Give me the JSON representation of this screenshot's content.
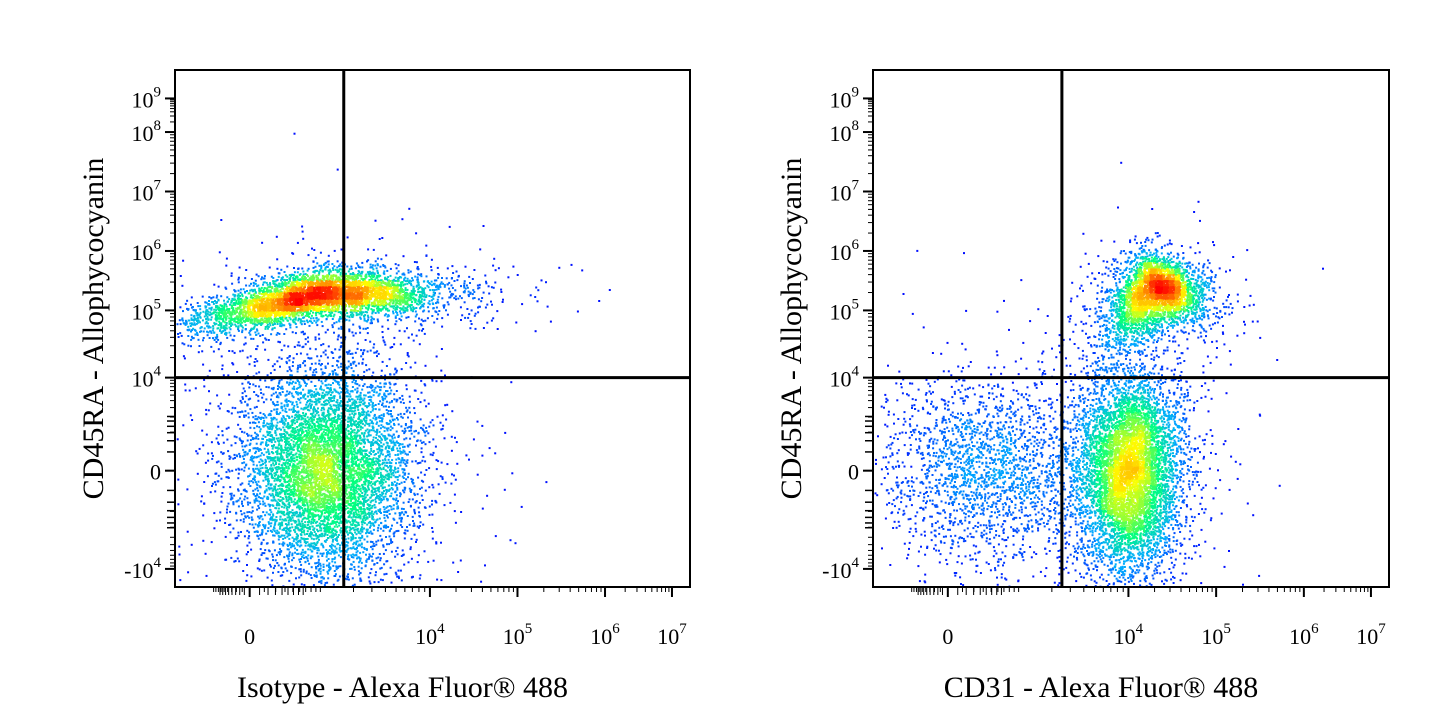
{
  "chart_data": [
    {
      "type": "scatter",
      "style": "density-dot-plot",
      "title": "",
      "xlabel": "Isotype - Alexa Fluor® 488",
      "ylabel": "CD45RA - Allophycocyanin",
      "x_scale": "biexponential",
      "y_scale": "biexponential",
      "x_ticks": [
        {
          "value": 0,
          "base": "0",
          "exp": ""
        },
        {
          "value": 10000,
          "base": "10",
          "exp": "4"
        },
        {
          "value": 100000,
          "base": "10",
          "exp": "5"
        },
        {
          "value": 1000000,
          "base": "10",
          "exp": "6"
        },
        {
          "value": 10000000,
          "base": "10",
          "exp": "7"
        }
      ],
      "y_ticks": [
        {
          "value": -10000,
          "base": "-10",
          "exp": "4"
        },
        {
          "value": 0,
          "base": "0",
          "exp": ""
        },
        {
          "value": 10000,
          "base": "10",
          "exp": "4"
        },
        {
          "value": 100000,
          "base": "10",
          "exp": "5"
        },
        {
          "value": 1000000,
          "base": "10",
          "exp": "6"
        },
        {
          "value": 10000000,
          "base": "10",
          "exp": "7"
        },
        {
          "value": 100000000,
          "base": "10",
          "exp": "8"
        },
        {
          "value": 1000000000,
          "base": "10",
          "exp": "9"
        }
      ],
      "quadrant_gate": {
        "x": 1600,
        "y": 10000
      },
      "populations": [
        {
          "x_center": 800,
          "y_center": 200000,
          "count": 5200
        },
        {
          "x_center": 1000,
          "y_center": 0,
          "count": 7000
        }
      ],
      "colormap": [
        "#0000ff",
        "#00aaff",
        "#00ff80",
        "#ffff00",
        "#ff8000",
        "#ff0000"
      ]
    },
    {
      "type": "scatter",
      "style": "density-dot-plot",
      "title": "",
      "xlabel": "CD31 - Alexa Fluor® 488",
      "ylabel": "CD45RA - Allophycocyanin",
      "x_scale": "biexponential",
      "y_scale": "biexponential",
      "x_ticks": [
        {
          "value": 0,
          "base": "0",
          "exp": ""
        },
        {
          "value": 10000,
          "base": "10",
          "exp": "4"
        },
        {
          "value": 100000,
          "base": "10",
          "exp": "5"
        },
        {
          "value": 1000000,
          "base": "10",
          "exp": "6"
        },
        {
          "value": 10000000,
          "base": "10",
          "exp": "7"
        }
      ],
      "y_ticks": [
        {
          "value": -10000,
          "base": "-10",
          "exp": "4"
        },
        {
          "value": 0,
          "base": "0",
          "exp": ""
        },
        {
          "value": 10000,
          "base": "10",
          "exp": "4"
        },
        {
          "value": 100000,
          "base": "10",
          "exp": "5"
        },
        {
          "value": 1000000,
          "base": "10",
          "exp": "6"
        },
        {
          "value": 10000000,
          "base": "10",
          "exp": "7"
        },
        {
          "value": 100000000,
          "base": "10",
          "exp": "8"
        },
        {
          "value": 1000000000,
          "base": "10",
          "exp": "9"
        }
      ],
      "quadrant_gate": {
        "x": 2500,
        "y": 10000
      },
      "populations": [
        {
          "x_center": 20000,
          "y_center": 250000,
          "count": 3600
        },
        {
          "x_center": 10000,
          "y_center": 0,
          "count": 6500
        },
        {
          "x_center": 300,
          "y_center": 0,
          "count": 2200
        }
      ],
      "colormap": [
        "#0000ff",
        "#00aaff",
        "#00ff80",
        "#ffff00",
        "#ff8000",
        "#ff0000"
      ]
    }
  ]
}
